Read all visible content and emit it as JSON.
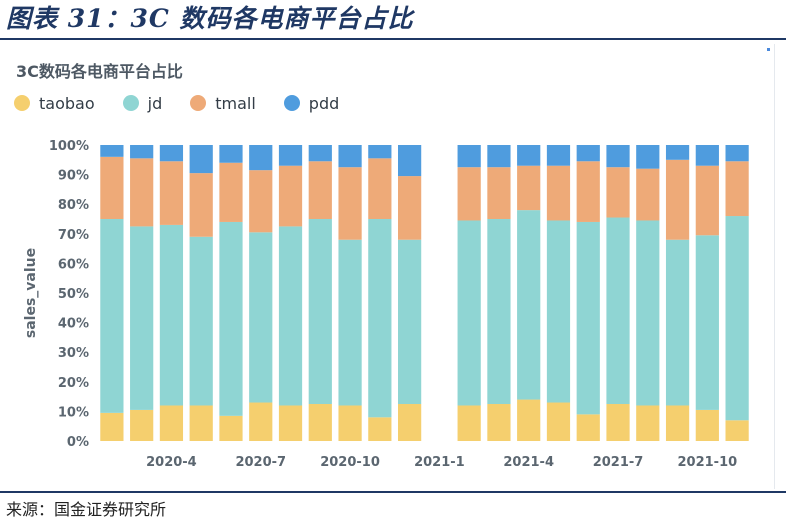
{
  "figure_title": "图表 31：3C 数码各电商平台占比",
  "source": "来源：国金证券研究所",
  "colors": {
    "taobao": "#f5cf6e",
    "jd": "#8fd5d3",
    "tmall": "#eeaa78",
    "pdd": "#4f9cde"
  },
  "chart_data": {
    "type": "bar",
    "stacked": true,
    "title": "3C数码各电商平台占比",
    "xlabel": "",
    "ylabel": "sales_value",
    "ylim": [
      0,
      100
    ],
    "yticks": [
      "0%",
      "10%",
      "20%",
      "30%",
      "40%",
      "50%",
      "60%",
      "70%",
      "80%",
      "90%",
      "100%"
    ],
    "legend_position": "top-left",
    "grid": false,
    "categories": [
      "2020-2",
      "2020-3",
      "2020-4",
      "2020-5",
      "2020-6",
      "2020-7",
      "2020-8",
      "2020-9",
      "2020-10",
      "2020-11",
      "2020-12",
      "2021-1",
      "2021-2",
      "2021-3",
      "2021-4",
      "2021-5",
      "2021-6",
      "2021-7",
      "2021-8",
      "2021-9",
      "2021-10",
      "2021-11"
    ],
    "xtick_labels": [
      {
        "index": 2,
        "label": "2020-4"
      },
      {
        "index": 5,
        "label": "2020-7"
      },
      {
        "index": 8,
        "label": "2020-10"
      },
      {
        "index": 11,
        "label": "2021-1"
      },
      {
        "index": 14,
        "label": "2021-4"
      },
      {
        "index": 17,
        "label": "2021-7"
      },
      {
        "index": 20,
        "label": "2021-10"
      }
    ],
    "series": [
      {
        "name": "taobao",
        "values": [
          9.5,
          10.5,
          12.0,
          12.0,
          8.5,
          13.0,
          12.0,
          12.5,
          12.0,
          8.0,
          12.5,
          null,
          12.0,
          12.5,
          14.0,
          13.0,
          9.0,
          12.5,
          12.0,
          12.0,
          10.5,
          7.0
        ]
      },
      {
        "name": "jd",
        "values": [
          65.5,
          62.0,
          61.0,
          57.0,
          65.5,
          57.5,
          60.5,
          62.5,
          56.0,
          67.0,
          55.5,
          null,
          62.5,
          62.5,
          64.0,
          61.5,
          65.0,
          63.0,
          62.5,
          56.0,
          59.0,
          69.0
        ]
      },
      {
        "name": "tmall",
        "values": [
          21.0,
          23.0,
          21.5,
          21.5,
          20.0,
          21.0,
          20.5,
          19.5,
          24.5,
          20.5,
          21.5,
          null,
          18.0,
          17.5,
          15.0,
          18.5,
          20.5,
          17.0,
          17.5,
          27.0,
          23.5,
          18.5
        ]
      },
      {
        "name": "pdd",
        "values": [
          4.0,
          4.5,
          5.5,
          9.5,
          6.0,
          8.5,
          7.0,
          5.5,
          7.5,
          4.5,
          10.5,
          null,
          7.5,
          7.5,
          7.0,
          7.0,
          5.5,
          7.5,
          8.0,
          5.0,
          7.0,
          5.5
        ]
      }
    ]
  }
}
